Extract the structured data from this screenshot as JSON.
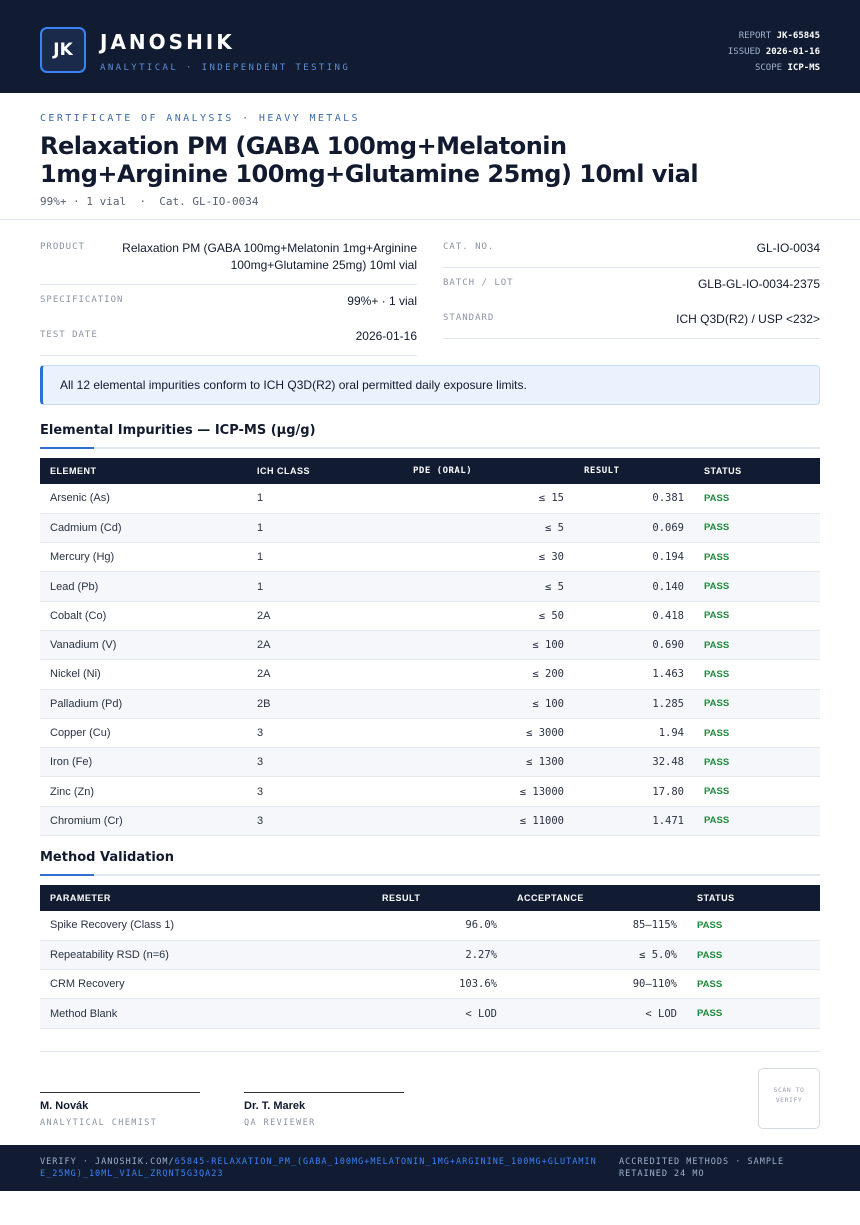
{
  "header": {
    "logo": "JK",
    "brand": "JANOSHIK",
    "tagline": "ANALYTICAL · INDEPENDENT TESTING",
    "meta": [
      {
        "label": "REPORT",
        "value": "JK-65845"
      },
      {
        "label": "ISSUED",
        "value": "2026-01-16"
      },
      {
        "label": "SCOPE",
        "value": "ICP-MS"
      }
    ]
  },
  "title": {
    "eyebrow": "CERTIFICATE OF ANALYSIS · HEAVY METALS",
    "heading": "Relaxation PM (GABA 100mg+Melatonin 1mg+Arginine 100mg+Glutamine 25mg) 10ml vial",
    "sub": "99%+ · 1 vial  ·  Cat. GL-IO-0034"
  },
  "info": {
    "left": [
      {
        "label": "PRODUCT",
        "value": "Relaxation PM (GABA 100mg+Melatonin 1mg+Arginine 100mg+Glutamine 25mg) 10ml vial"
      },
      {
        "label": "SPECIFICATION",
        "value": "99%+ · 1 vial"
      },
      {
        "label": "TEST DATE",
        "value": "2026-01-16"
      }
    ],
    "right": [
      {
        "label": "CAT. NO.",
        "value": "GL-IO-0034"
      },
      {
        "label": "BATCH / LOT",
        "value": "GLB-GL-IO-0034-2375"
      },
      {
        "label": "STANDARD",
        "value": "ICH Q3D(R2) / USP <232>"
      }
    ]
  },
  "notice": "All 12 elemental impurities conform to ICH Q3D(R2) oral permitted daily exposure limits.",
  "impurities": {
    "title": "Elemental Impurities — ICP-MS (µg/g)",
    "columns": [
      "ELEMENT",
      "ICH CLASS",
      "PDE (ORAL)",
      "RESULT",
      "STATUS"
    ],
    "rows": [
      [
        "Arsenic (As)",
        "1",
        "≤ 15",
        "0.381",
        "PASS"
      ],
      [
        "Cadmium (Cd)",
        "1",
        "≤ 5",
        "0.069",
        "PASS"
      ],
      [
        "Mercury (Hg)",
        "1",
        "≤ 30",
        "0.194",
        "PASS"
      ],
      [
        "Lead (Pb)",
        "1",
        "≤ 5",
        "0.140",
        "PASS"
      ],
      [
        "Cobalt (Co)",
        "2A",
        "≤ 50",
        "0.418",
        "PASS"
      ],
      [
        "Vanadium (V)",
        "2A",
        "≤ 100",
        "0.690",
        "PASS"
      ],
      [
        "Nickel (Ni)",
        "2A",
        "≤ 200",
        "1.463",
        "PASS"
      ],
      [
        "Palladium (Pd)",
        "2B",
        "≤ 100",
        "1.285",
        "PASS"
      ],
      [
        "Copper (Cu)",
        "3",
        "≤ 3000",
        "1.94",
        "PASS"
      ],
      [
        "Iron (Fe)",
        "3",
        "≤ 1300",
        "32.48",
        "PASS"
      ],
      [
        "Zinc (Zn)",
        "3",
        "≤ 13000",
        "17.80",
        "PASS"
      ],
      [
        "Chromium (Cr)",
        "3",
        "≤ 11000",
        "1.471",
        "PASS"
      ]
    ]
  },
  "validation": {
    "title": "Method Validation",
    "columns": [
      "PARAMETER",
      "RESULT",
      "ACCEPTANCE",
      "STATUS"
    ],
    "rows": [
      [
        "Spike Recovery (Class 1)",
        "96.0%",
        "85–115%",
        "PASS"
      ],
      [
        "Repeatability RSD (n=6)",
        "2.27%",
        "≤ 5.0%",
        "PASS"
      ],
      [
        "CRM Recovery",
        "103.6%",
        "90–110%",
        "PASS"
      ],
      [
        "Method Blank",
        "< LOD",
        "< LOD",
        "PASS"
      ]
    ]
  },
  "signatures": [
    {
      "name": "M. Novák",
      "role": "ANALYTICAL CHEMIST"
    },
    {
      "name": "Dr. T. Marek",
      "role": "QA REVIEWER"
    }
  ],
  "qr": "SCAN TO VERIFY",
  "footer": {
    "verify": "VERIFY · JANOSHIK.COM/",
    "link": "65845-RELAXATION_PM_(GABA_100MG+MELATONIN_1MG+ARGININE_100MG+GLUTAMINE_25MG)_10ML_VIAL_ZRQNT5G3QA23",
    "note": "ACCREDITED METHODS · SAMPLE RETAINED 24 MO"
  }
}
